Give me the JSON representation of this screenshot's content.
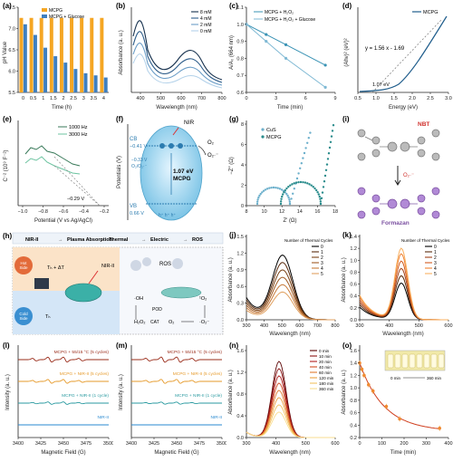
{
  "panels": {
    "a": {
      "label": "(a)",
      "ylabel": "pH Value",
      "xlabel": "Time (h)",
      "legend": [
        "MCPG",
        "MCPG + Glucose"
      ],
      "colors": {
        "mcpg": "#f5a623",
        "gluc": "#3f7fbf"
      },
      "x": [
        "0",
        "0.5",
        "1",
        "1.5",
        "2",
        "2.5",
        "3",
        "3.5",
        "4"
      ],
      "yticks": [
        "5.5",
        "6.0",
        "6.5",
        "7.0",
        "7.5"
      ],
      "chart_data": {
        "type": "bar",
        "categories": [
          "0",
          "0.5",
          "1",
          "1.5",
          "2",
          "2.5",
          "3",
          "3.5",
          "4"
        ],
        "series": [
          {
            "name": "MCPG",
            "values": [
              7.25,
              7.25,
              7.25,
              7.25,
              7.25,
              7.25,
              7.25,
              7.25,
              7.25
            ]
          },
          {
            "name": "MCPG + Glucose",
            "values": [
              7.1,
              6.85,
              6.55,
              6.35,
              6.2,
              6.05,
              5.95,
              5.9,
              5.85
            ]
          }
        ],
        "ylim": [
          5.5,
          7.5
        ]
      }
    },
    "b": {
      "label": "(b)",
      "ylabel": "Absorbance (a. u.)",
      "xlabel": "Wavelength (nm)",
      "legend": [
        "8 mM",
        "4 mM",
        "2 mM",
        "0 mM"
      ],
      "xticks": [
        "400",
        "500",
        "600",
        "700",
        "800"
      ]
    },
    "c": {
      "label": "(c)",
      "ylabel": "A/A₀ (664 nm)",
      "xlabel": "Time (min)",
      "legend": [
        "MCPG + H₂O₂",
        "MCPG + H₂O₂ + Glucose"
      ],
      "xticks": [
        "0",
        "3",
        "6",
        "9"
      ],
      "yticks": [
        "0.6",
        "0.7",
        "0.8",
        "0.9",
        "1.0",
        "1.1"
      ],
      "chart_data": {
        "type": "line",
        "series": [
          {
            "name": "MCPG + H₂O₂",
            "x": [
              0,
              2,
              4,
              8
            ],
            "y": [
              1.0,
              0.94,
              0.88,
              0.76
            ]
          },
          {
            "name": "MCPG + H₂O₂ + Glucose",
            "x": [
              0,
              2,
              4,
              8
            ],
            "y": [
              1.0,
              0.9,
              0.8,
              0.63
            ]
          }
        ]
      }
    },
    "d": {
      "label": "(d)",
      "ylabel": "(Ahν)² (eV)²",
      "xlabel": "Energy (eV)",
      "legend": "MCPG",
      "equation": "y = 1.56 x - 1.69",
      "bandgap": "1.07 eV",
      "xticks": [
        "0.5",
        "1.0",
        "1.5",
        "2.0",
        "2.5",
        "3.0"
      ]
    },
    "e": {
      "label": "(e)",
      "ylabel": "C⁻² (10⁹ F⁻²)",
      "xlabel": "Potential (V vs Ag/AgCl)",
      "legend": [
        "1000 Hz",
        "3000 Hz"
      ],
      "annotation": "−0.29 V",
      "xticks": [
        "−1.0",
        "−0.8",
        "−0.6",
        "−0.4",
        "−0.2"
      ]
    },
    "f": {
      "label": "(f)",
      "ylabel": "Potentials (V)",
      "nir": "NIR",
      "cb": "CB",
      "cb_val": "−0.41 V",
      "o2_pot": "−0.33 V",
      "o2_pot_label": "O₂/O₂·⁻",
      "gap": "1.07 eV",
      "material": "MCPG",
      "vb": "VB",
      "vb_val": "0.66 V",
      "o2": "O₂",
      "o2r": "O₂·⁻"
    },
    "g": {
      "label": "(g)",
      "ylabel": "−Z″ (Ω)",
      "xlabel": "Z′ (Ω)",
      "legend": [
        "CuS",
        "MCPG"
      ],
      "xticks": [
        "8",
        "10",
        "12",
        "14",
        "16",
        "18"
      ],
      "yticks": [
        "0",
        "2",
        "4",
        "6",
        "8"
      ]
    },
    "i": {
      "label": "(i)",
      "nbt": "NBT",
      "formazan": "Formazan",
      "o2r": "O₂·⁻"
    },
    "h": {
      "label": "(h)",
      "flow": [
        "NIR-II",
        "Plasma Absorption",
        "Thermal",
        "Electric",
        "ROS"
      ],
      "hot": "Hot Side",
      "cold": "Cold Side",
      "nir": "NIR-II",
      "labels": [
        "Tₕ + ΔT",
        "Tₕ",
        "ROS",
        "·OH",
        "H₂O₂",
        "POD",
        "CAT",
        "O₂",
        "·O₂⁻",
        "¹O₂"
      ]
    },
    "j": {
      "label": "(j)",
      "ylabel": "Absorbance (a. u.)",
      "xlabel": "Wavelength (nm)",
      "legend_title": "Number of Thermal Cycles",
      "legend": [
        "0",
        "1",
        "2",
        "3",
        "4",
        "5"
      ],
      "xticks": [
        "300",
        "400",
        "500",
        "600",
        "700",
        "800"
      ],
      "yticks": [
        "0.0",
        "0.3",
        "0.6",
        "0.9",
        "1.2",
        "1.5"
      ]
    },
    "k": {
      "label": "(k)",
      "ylabel": "Absorbance (a. u.)",
      "xlabel": "Wavelength (nm)",
      "legend_title": "Number of Thermal Cycles",
      "legend": [
        "0",
        "1",
        "2",
        "3",
        "4",
        "5"
      ],
      "xticks": [
        "300",
        "400",
        "500",
        "600"
      ],
      "yticks": [
        "0.0",
        "0.2",
        "0.4",
        "0.6",
        "0.8",
        "1.0",
        "1.2",
        "1.4"
      ]
    },
    "l": {
      "label": "(l)",
      "ylabel": "Intensity (a. u.)",
      "xlabel": "Magnetic Field (G)",
      "traces": [
        "MCPG + 55/15 °C (5 cycles)",
        "MCPG + NIR-II (5 cycles)",
        "MCPG + NIR-II (1 cycle)",
        "NIR-II"
      ],
      "xticks": [
        "3400",
        "3425",
        "3450",
        "3475",
        "3500"
      ]
    },
    "m": {
      "label": "(m)",
      "ylabel": "Intensity (a. u.)",
      "xlabel": "Magnetic Field (G)",
      "traces": [
        "MCPG + 55/15 °C (5 cycles)",
        "MCPG + NIR-II (5 cycles)",
        "MCPG + NIR-II (1 cycle)",
        "NIR-II"
      ],
      "xticks": [
        "3400",
        "3425",
        "3450",
        "3475",
        "3500"
      ]
    },
    "n": {
      "label": "(n)",
      "ylabel": "Absorbance (a. u.)",
      "xlabel": "Wavelength (nm)",
      "legend": [
        "0 min",
        "10 min",
        "20 min",
        "40 min",
        "60 min",
        "120 min",
        "180 min",
        "360 min"
      ],
      "xticks": [
        "300",
        "400",
        "500",
        "600"
      ],
      "yticks": [
        "0.0",
        "0.4",
        "0.8",
        "1.2",
        "1.6"
      ]
    },
    "o": {
      "label": "(o)",
      "ylabel": "Absorbance (a. u.)",
      "xlabel": "Time (min)",
      "inset": [
        "0 min",
        "360 min"
      ],
      "xticks": [
        "0",
        "100",
        "200",
        "300",
        "400"
      ],
      "yticks": [
        "0.2",
        "0.4",
        "0.6",
        "0.8",
        "1.0",
        "1.2",
        "1.4",
        "1.6"
      ],
      "chart_data": {
        "type": "scatter",
        "x": [
          0,
          10,
          20,
          40,
          60,
          120,
          180,
          360
        ],
        "y": [
          1.4,
          1.3,
          1.2,
          1.05,
          0.95,
          0.7,
          0.5,
          0.35
        ]
      }
    }
  }
}
